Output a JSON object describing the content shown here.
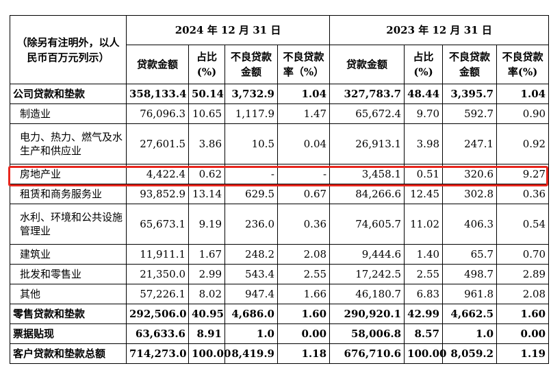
{
  "header": {
    "unit_note": "（除另有注明外，以人民币百万元列示）",
    "year_2024": "2024 年 12 月 31 日",
    "year_2023": "2023 年 12 月 31 日",
    "col_loan_amount": "贷款金额",
    "col_share_line1": "占比",
    "col_share_line2": "(%)",
    "col_npl_amount_line1": "不良贷款",
    "col_npl_amount_line2": "金额",
    "col_npl_ratio_line1": "不良贷款",
    "col_npl_ratio_line2_2024": "率（%）",
    "col_npl_ratio_line2_2023": "率(%)"
  },
  "rows": [
    {
      "label": "公司贷款和垫款",
      "bold": true,
      "v": [
        "358,133.4",
        "50.14",
        "3,732.9",
        "1.04",
        "327,783.7",
        "48.44",
        "3,395.7",
        "1.04"
      ]
    },
    {
      "label": "制造业",
      "v": [
        "76,096.3",
        "10.65",
        "1,117.9",
        "1.47",
        "65,672.4",
        "9.70",
        "592.7",
        "0.90"
      ]
    },
    {
      "label": "电力、热力、燃气及水生产和供应业",
      "v": [
        "27,601.5",
        "3.86",
        "10.5",
        "0.04",
        "26,913.1",
        "3.98",
        "247.1",
        "0.92"
      ]
    },
    {
      "label": "房地产业",
      "v": [
        "4,422.4",
        "0.62",
        "-",
        "-",
        "3,458.1",
        "0.51",
        "320.6",
        "9.27"
      ]
    },
    {
      "label": "租赁和商务服务业",
      "v": [
        "93,852.9",
        "13.14",
        "629.5",
        "0.67",
        "84,266.6",
        "12.45",
        "302.8",
        "0.36"
      ]
    },
    {
      "label": "水利、环境和公共设施管理业",
      "v": [
        "65,673.1",
        "9.19",
        "236.0",
        "0.36",
        "74,605.7",
        "11.02",
        "406.3",
        "0.54"
      ]
    },
    {
      "label": "建筑业",
      "v": [
        "11,911.1",
        "1.67",
        "248.2",
        "2.08",
        "9,444.6",
        "1.40",
        "65.7",
        "0.70"
      ]
    },
    {
      "label": "批发和零售业",
      "v": [
        "21,350.0",
        "2.99",
        "543.4",
        "2.55",
        "17,242.5",
        "2.55",
        "498.7",
        "2.89"
      ]
    },
    {
      "label": "其他",
      "v": [
        "57,226.1",
        "8.02",
        "947.4",
        "1.66",
        "46,180.7",
        "6.83",
        "961.8",
        "2.08"
      ]
    },
    {
      "label": "零售贷款和垫款",
      "bold": true,
      "v": [
        "292,506.0",
        "40.95",
        "4,686.0",
        "1.60",
        "290,920.1",
        "42.99",
        "4,662.5",
        "1.60"
      ]
    },
    {
      "label": "票据贴现",
      "bold": true,
      "v": [
        "63,633.6",
        "8.91",
        "1.0",
        "0.00",
        "58,006.8",
        "8.57",
        "1.0",
        "0.00"
      ]
    },
    {
      "label": "客户贷款和垫款总额",
      "bold": true,
      "v": [
        "714,273.0",
        "100.00",
        "8,419.9",
        "1.18",
        "676,710.6",
        "100.00",
        "8,059.2",
        "1.19"
      ]
    }
  ],
  "highlight_color": "#e8261d"
}
